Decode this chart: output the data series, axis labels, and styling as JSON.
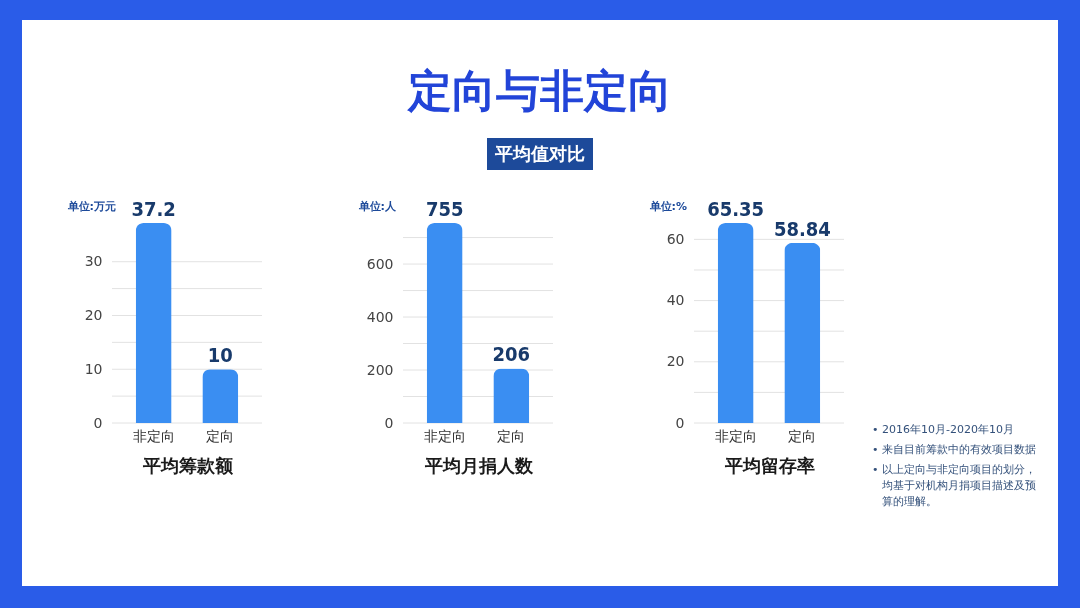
{
  "chart_data": [
    {
      "type": "bar",
      "ylabel": "单位:万元",
      "xlabel": "平均筹款额",
      "categories": [
        "非定向",
        "定向"
      ],
      "values": [
        37.2,
        10
      ],
      "color": "#3a8ef2",
      "ylim": [
        0,
        37.2
      ],
      "yticks": [
        0,
        {
          "value": 5,
          "label": null
        },
        10,
        {
          "value": 15,
          "label": null
        },
        20,
        {
          "value": 25,
          "label": null
        },
        30
      ],
      "grid": "y",
      "data_labels": true
    },
    {
      "type": "bar",
      "title": "定向与非定向",
      "subtitle": "平均值对比",
      "ylabel": "单位:人",
      "xlabel": "平均月捐人数",
      "categories": [
        "非定向",
        "定向"
      ],
      "values": [
        755,
        206
      ],
      "color": "#3a8ef2",
      "ylim": [
        0,
        755
      ],
      "yticks": [
        0,
        {
          "value": 100,
          "label": null
        },
        200,
        {
          "value": 300,
          "label": null
        },
        400,
        {
          "value": 500,
          "label": null
        },
        600,
        {
          "value": 700,
          "label": null
        }
      ],
      "grid": "y",
      "data_labels": true
    },
    {
      "type": "bar",
      "ylabel": "单位:%",
      "xlabel": "平均留存率",
      "categories": [
        "非定向",
        "定向"
      ],
      "values": [
        65.35,
        58.84
      ],
      "color": "#3a8ef2",
      "ylim": [
        0,
        65.35
      ],
      "yticks": [
        0,
        {
          "value": 10,
          "label": null
        },
        20,
        {
          "value": 30,
          "label": null
        },
        40,
        {
          "value": 50,
          "label": null
        },
        60
      ],
      "grid": "y",
      "data_labels": true
    },
    {
      "type": "other",
      "annotations": [
        "• 2016年10月-2020年10月",
        "• 来自目前筹款中的有效项目数据",
        "• 以上定向与非定向项目的划分，均基于对机构月捐项目描述及预算的理解。"
      ]
    }
  ]
}
